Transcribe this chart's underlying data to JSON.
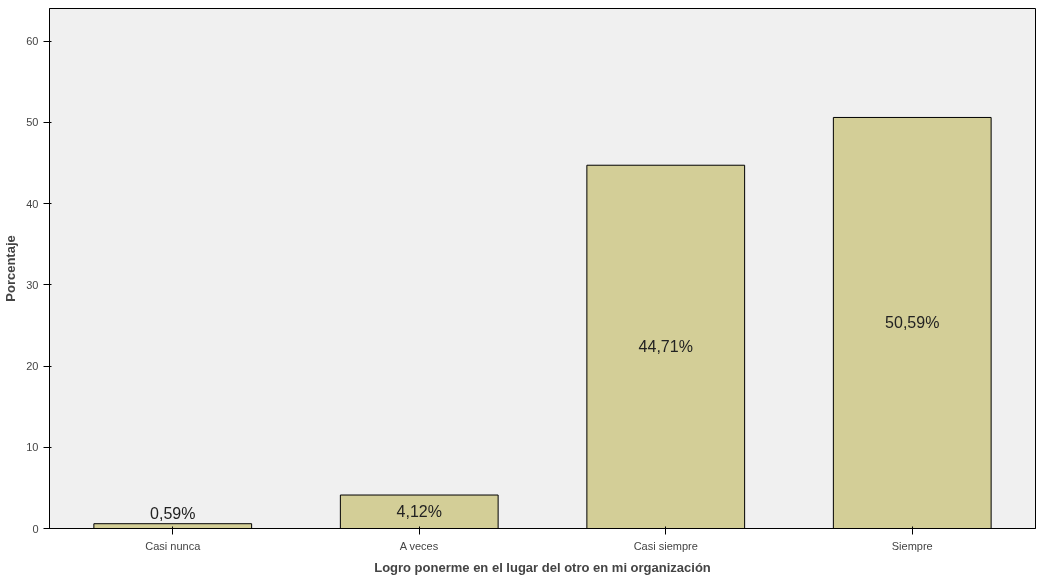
{
  "chart_data": {
    "type": "bar",
    "xlabel": "Logro ponerme en el lugar del otro en mi organización",
    "ylabel": "Porcentaje",
    "categories": [
      "Casi nunca",
      "A veces",
      "Casi siempre",
      "Siempre"
    ],
    "values": [
      0.59,
      4.12,
      44.71,
      50.59
    ],
    "value_labels": [
      "0,59%",
      "4,12%",
      "44,71%",
      "50,59%"
    ],
    "color": "#d3ce97",
    "ylim": [
      0,
      64
    ],
    "yticks": [
      0,
      10,
      20,
      30,
      40,
      50,
      60
    ],
    "grid": false
  }
}
